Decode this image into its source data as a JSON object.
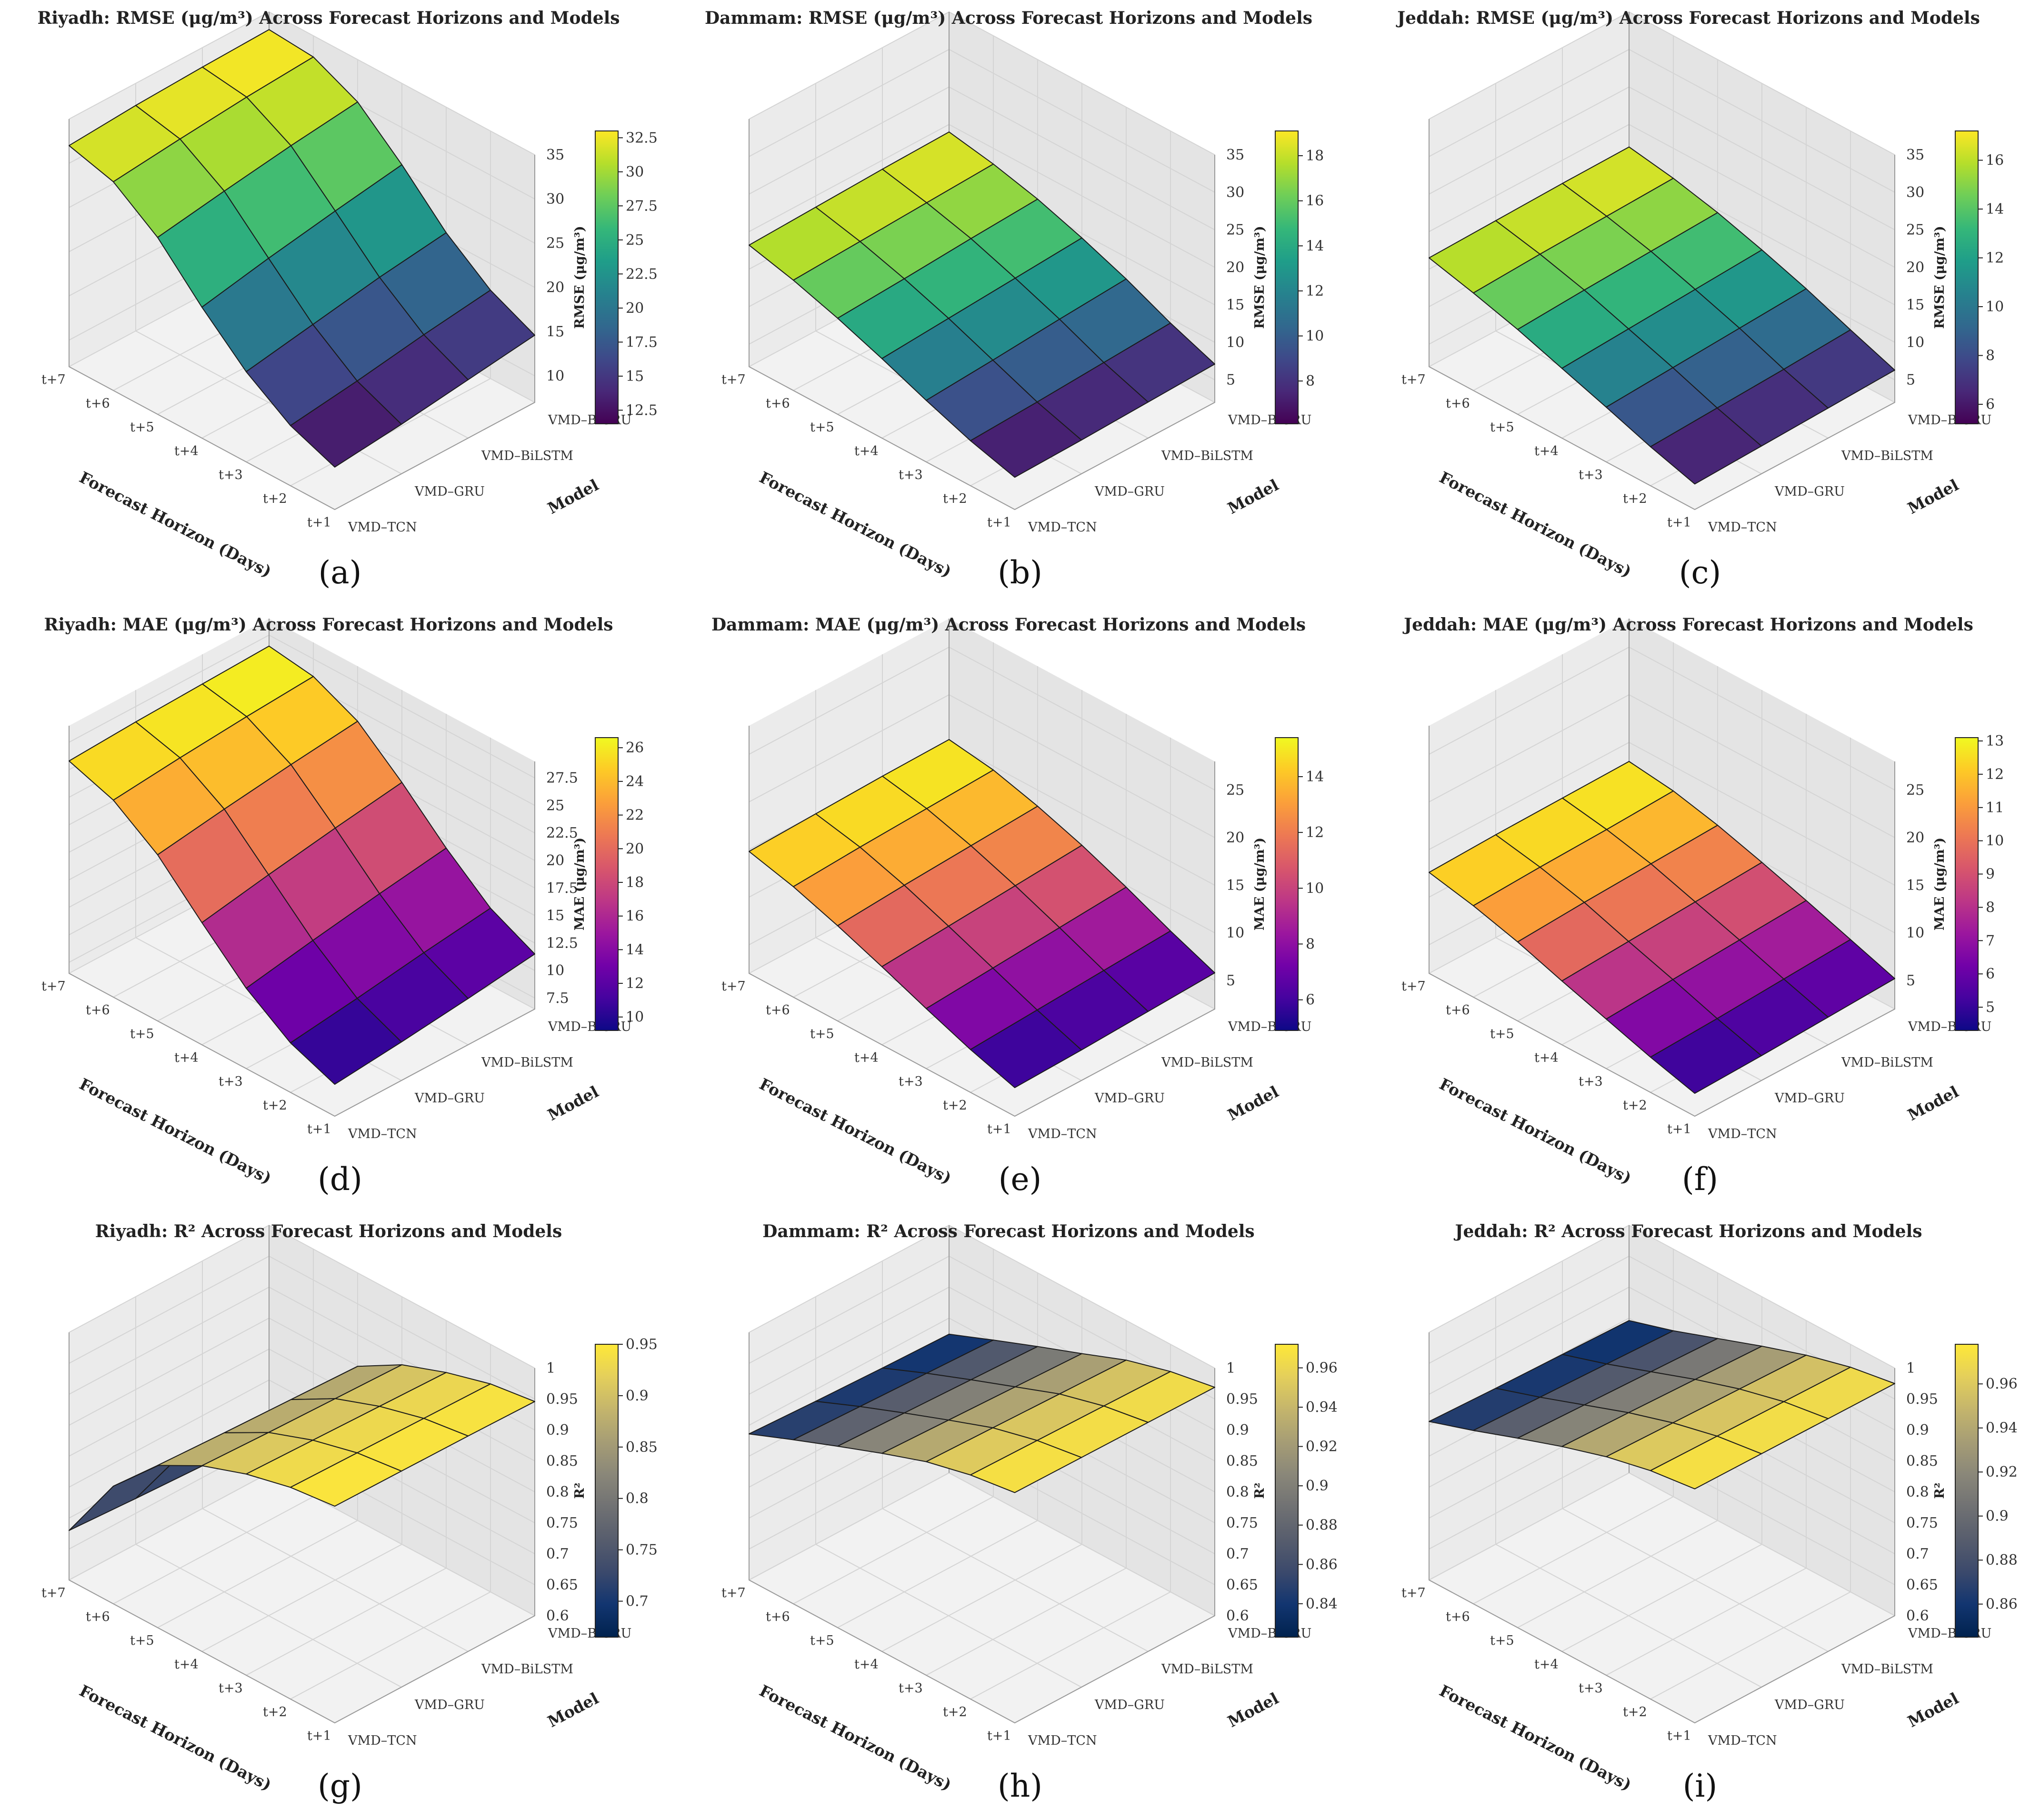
{
  "figure": {
    "panel_labels": [
      "(a)",
      "(b)",
      "(c)",
      "(d)",
      "(e)",
      "(f)",
      "(g)",
      "(h)",
      "(i)"
    ]
  },
  "axes": {
    "horizon_label": "Forecast Horizon (Days)",
    "model_label": "Model",
    "horizons": [
      "t+1",
      "t+2",
      "t+3",
      "t+4",
      "t+5",
      "t+6",
      "t+7"
    ],
    "models": [
      "VMD–TCN",
      "VMD–GRU",
      "VMD–BiLSTM",
      "VMD–BiGRU"
    ]
  },
  "colormaps": {
    "viridis": [
      "#440154",
      "#482878",
      "#3e4989",
      "#31688e",
      "#26828e",
      "#1f9e89",
      "#35b779",
      "#6ece58",
      "#b5de2b",
      "#fde725"
    ],
    "plasma": [
      "#0d0887",
      "#46039f",
      "#7201a8",
      "#9c179e",
      "#bd3786",
      "#d8576b",
      "#ed7953",
      "#fb9f3a",
      "#fdca26",
      "#f0f921"
    ],
    "cividis": [
      "#00224e",
      "#123570",
      "#3b496c",
      "#575d6d",
      "#707173",
      "#8a8779",
      "#a69d75",
      "#c4b56c",
      "#e4cf5b",
      "#fee838"
    ]
  },
  "chart_data": [
    {
      "type": "surface3d",
      "panel": "(a)",
      "title": "Riyadh: RMSE (μg/m³) Across Forecast Horizons and Models",
      "zlabel": "RMSE (μg/m³)",
      "colormap": "viridis",
      "zlim": [
        7,
        35
      ],
      "zticks": [
        10,
        15,
        20,
        25,
        30,
        35
      ],
      "cbar_range": [
        11.5,
        33.0
      ],
      "cbar_ticks": [
        12.5,
        15.0,
        17.5,
        20.0,
        22.5,
        25.0,
        27.5,
        30.0,
        32.5
      ],
      "values": [
        [
          11.8,
          12.6,
          13.6,
          14.6
        ],
        [
          13.8,
          14.8,
          16.0,
          17.0
        ],
        [
          17.2,
          18.5,
          19.8,
          20.8
        ],
        [
          21.8,
          23.3,
          24.6,
          25.8
        ],
        [
          27.0,
          28.2,
          29.3,
          30.2
        ],
        [
          30.6,
          31.4,
          32.1,
          32.6
        ],
        [
          32.0,
          32.5,
          32.8,
          33.0
        ]
      ]
    },
    {
      "type": "surface3d",
      "panel": "(b)",
      "title": "Dammam: RMSE (μg/m³) Across Forecast Horizons and Models",
      "zlabel": "RMSE (μg/m³)",
      "colormap": "viridis",
      "zlim": [
        2,
        35
      ],
      "zticks": [
        5,
        10,
        15,
        20,
        25,
        30,
        35
      ],
      "cbar_range": [
        6.1,
        19.1
      ],
      "cbar_ticks": [
        8,
        10,
        12,
        14,
        16,
        18
      ],
      "values": [
        [
          6.3,
          6.5,
          6.8,
          7.1
        ],
        [
          8.0,
          8.4,
          8.9,
          9.4
        ],
        [
          10.2,
          10.8,
          11.5,
          12.1
        ],
        [
          12.6,
          13.2,
          13.8,
          14.4
        ],
        [
          14.8,
          15.3,
          15.9,
          16.4
        ],
        [
          16.7,
          17.1,
          17.5,
          17.9
        ],
        [
          18.2,
          18.5,
          18.8,
          19.0
        ]
      ]
    },
    {
      "type": "surface3d",
      "panel": "(c)",
      "title": "Jeddah: RMSE (μg/m³) Across Forecast Horizons and Models",
      "zlabel": "RMSE (μg/m³)",
      "colormap": "viridis",
      "zlim": [
        2,
        35
      ],
      "zticks": [
        5,
        10,
        15,
        20,
        25,
        30,
        35
      ],
      "cbar_range": [
        5.2,
        17.2
      ],
      "cbar_ticks": [
        6,
        8,
        10,
        12,
        14,
        16
      ],
      "values": [
        [
          5.4,
          5.7,
          6.0,
          6.3
        ],
        [
          7.2,
          7.6,
          8.0,
          8.5
        ],
        [
          9.3,
          9.8,
          10.3,
          10.8
        ],
        [
          11.3,
          11.8,
          12.3,
          12.8
        ],
        [
          13.3,
          13.8,
          14.2,
          14.6
        ],
        [
          15.0,
          15.4,
          15.7,
          16.0
        ],
        [
          16.5,
          16.7,
          16.9,
          17.0
        ]
      ]
    },
    {
      "type": "surface3d",
      "panel": "(d)",
      "title": "Riyadh: MAE (μg/m³) Across Forecast Horizons and Models",
      "zlabel": "MAE (μg/m³)",
      "colormap": "plasma",
      "zlim": [
        6.5,
        29
      ],
      "zticks": [
        7.5,
        10.0,
        12.5,
        15.0,
        17.5,
        20.0,
        22.5,
        25.0,
        27.5
      ],
      "cbar_range": [
        9.2,
        26.6
      ],
      "cbar_ticks": [
        10,
        12,
        14,
        16,
        18,
        20,
        22,
        24,
        26
      ],
      "values": [
        [
          9.4,
          10.0,
          10.7,
          11.5
        ],
        [
          11.0,
          11.8,
          12.7,
          13.5
        ],
        [
          13.8,
          14.9,
          15.9,
          16.8
        ],
        [
          17.6,
          18.7,
          19.7,
          20.6
        ],
        [
          21.6,
          22.5,
          23.3,
          24.0
        ],
        [
          24.4,
          25.0,
          25.5,
          25.9
        ],
        [
          25.8,
          26.1,
          26.3,
          26.5
        ]
      ]
    },
    {
      "type": "surface3d",
      "panel": "(e)",
      "title": "Dammam: MAE (μg/m³) Across Forecast Horizons and Models",
      "zlabel": "MAE (μg/m³)",
      "colormap": "plasma",
      "zlim": [
        2,
        28
      ],
      "zticks": [
        5,
        10,
        15,
        20,
        25
      ],
      "cbar_range": [
        4.9,
        15.4
      ],
      "cbar_ticks": [
        6,
        8,
        10,
        12,
        14
      ],
      "values": [
        [
          5.0,
          5.2,
          5.5,
          5.8
        ],
        [
          6.5,
          6.9,
          7.3,
          7.7
        ],
        [
          8.3,
          8.8,
          9.3,
          9.8
        ],
        [
          10.2,
          10.7,
          11.2,
          11.7
        ],
        [
          12.0,
          12.5,
          12.9,
          13.3
        ],
        [
          13.6,
          14.0,
          14.3,
          14.6
        ],
        [
          14.8,
          15.0,
          15.2,
          15.3
        ]
      ]
    },
    {
      "type": "surface3d",
      "panel": "(f)",
      "title": "Jeddah: MAE (μg/m³) Across Forecast Horizons and Models",
      "zlabel": "MAE (μg/m³)",
      "colormap": "plasma",
      "zlim": [
        2,
        28
      ],
      "zticks": [
        5,
        10,
        15,
        20,
        25
      ],
      "cbar_range": [
        4.3,
        13.1
      ],
      "cbar_ticks": [
        5,
        6,
        7,
        8,
        9,
        10,
        11,
        12,
        13
      ],
      "values": [
        [
          4.4,
          4.6,
          4.9,
          5.2
        ],
        [
          5.7,
          6.0,
          6.4,
          6.8
        ],
        [
          7.2,
          7.6,
          8.0,
          8.4
        ],
        [
          8.7,
          9.1,
          9.5,
          9.9
        ],
        [
          10.3,
          10.7,
          11.0,
          11.3
        ],
        [
          11.6,
          11.9,
          12.1,
          12.4
        ],
        [
          12.6,
          12.8,
          12.9,
          13.0
        ]
      ]
    },
    {
      "type": "surface3d",
      "panel": "(g)",
      "title": "Riyadh: R² Across Forecast Horizons and Models",
      "zlabel": "R²",
      "colormap": "cividis",
      "zlim": [
        0.6,
        1.0
      ],
      "zticks": [
        0.6,
        0.65,
        0.7,
        0.75,
        0.8,
        0.85,
        0.9,
        0.95,
        1.0
      ],
      "cbar_range": [
        0.665,
        0.95
      ],
      "cbar_ticks": [
        0.7,
        0.75,
        0.8,
        0.85,
        0.9,
        0.95
      ],
      "values": [
        [
          0.95,
          0.949,
          0.948,
          0.946
        ],
        [
          0.942,
          0.94,
          0.938,
          0.936
        ],
        [
          0.925,
          0.922,
          0.919,
          0.916
        ],
        [
          0.9,
          0.896,
          0.893,
          0.89
        ],
        [
          0.862,
          0.857,
          0.853,
          0.849
        ],
        [
          0.79,
          0.782,
          0.776,
          0.772
        ],
        [
          0.68,
          0.674,
          0.669,
          0.665
        ]
      ]
    },
    {
      "type": "surface3d",
      "panel": "(h)",
      "title": "Dammam: R² Across Forecast Horizons and Models",
      "zlabel": "R²",
      "colormap": "cividis",
      "zlim": [
        0.6,
        1.0
      ],
      "zticks": [
        0.6,
        0.65,
        0.7,
        0.75,
        0.8,
        0.85,
        0.9,
        0.95,
        1.0
      ],
      "cbar_range": [
        0.823,
        0.972
      ],
      "cbar_ticks": [
        0.84,
        0.86,
        0.88,
        0.9,
        0.92,
        0.94,
        0.96
      ],
      "values": [
        [
          0.972,
          0.971,
          0.97,
          0.969
        ],
        [
          0.962,
          0.96,
          0.958,
          0.956
        ],
        [
          0.945,
          0.942,
          0.939,
          0.936
        ],
        [
          0.92,
          0.916,
          0.912,
          0.908
        ],
        [
          0.893,
          0.889,
          0.885,
          0.881
        ],
        [
          0.865,
          0.861,
          0.857,
          0.853
        ],
        [
          0.836,
          0.831,
          0.827,
          0.824
        ]
      ]
    },
    {
      "type": "surface3d",
      "panel": "(i)",
      "title": "Jeddah: R² Across Forecast Horizons and Models",
      "zlabel": "R²",
      "colormap": "cividis",
      "zlim": [
        0.6,
        1.0
      ],
      "zticks": [
        0.6,
        0.65,
        0.7,
        0.75,
        0.8,
        0.85,
        0.9,
        0.95,
        1.0
      ],
      "cbar_range": [
        0.845,
        0.978
      ],
      "cbar_ticks": [
        0.86,
        0.88,
        0.9,
        0.92,
        0.94,
        0.96
      ],
      "values": [
        [
          0.978,
          0.977,
          0.976,
          0.975
        ],
        [
          0.969,
          0.967,
          0.965,
          0.963
        ],
        [
          0.953,
          0.95,
          0.947,
          0.944
        ],
        [
          0.931,
          0.928,
          0.924,
          0.92
        ],
        [
          0.906,
          0.902,
          0.898,
          0.894
        ],
        [
          0.88,
          0.876,
          0.872,
          0.868
        ],
        [
          0.856,
          0.852,
          0.849,
          0.846
        ]
      ]
    }
  ]
}
